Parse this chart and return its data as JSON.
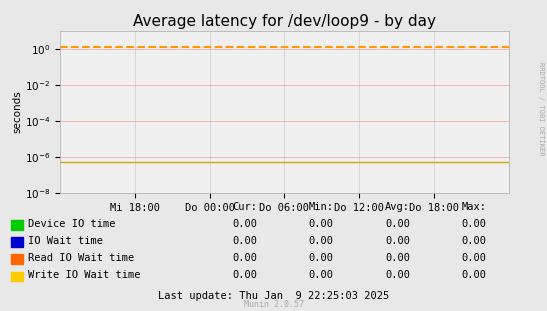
{
  "title": "Average latency for /dev/loop9 - by day",
  "ylabel": "seconds",
  "background_color": "#e8e8e8",
  "plot_bg_color": "#f0f0f0",
  "grid_color_major": "#ff9999",
  "grid_color_minor": "#cccccc",
  "ylim_min": 1e-08,
  "ylim_max": 10,
  "xlim_min": 0,
  "xlim_max": 1,
  "x_ticks": [
    0.1667,
    0.3333,
    0.5,
    0.6667,
    0.8333
  ],
  "x_tick_labels": [
    "Mi 18:00",
    "Do 00:00",
    "Do 06:00",
    "Do 12:00",
    "Do 18:00"
  ],
  "dashed_line_y": 1.3,
  "dashed_line_color": "#ff9900",
  "bottom_line_color": "#ccaa00",
  "legend_items": [
    {
      "label": "Device IO time",
      "color": "#00cc00"
    },
    {
      "label": "IO Wait time",
      "color": "#0000cc"
    },
    {
      "label": "Read IO Wait time",
      "color": "#ff6600"
    },
    {
      "label": "Write IO Wait time",
      "color": "#ffcc00"
    }
  ],
  "table_headers": [
    "Cur:",
    "Min:",
    "Avg:",
    "Max:"
  ],
  "table_rows": [
    [
      "0.00",
      "0.00",
      "0.00",
      "0.00"
    ],
    [
      "0.00",
      "0.00",
      "0.00",
      "0.00"
    ],
    [
      "0.00",
      "0.00",
      "0.00",
      "0.00"
    ],
    [
      "0.00",
      "0.00",
      "0.00",
      "0.00"
    ]
  ],
  "last_update": "Last update: Thu Jan  9 22:25:03 2025",
  "watermark": "Munin 2.0.57",
  "rrdtool_text": "RRDTOOL / TOBI OETIKER",
  "title_fontsize": 11,
  "axis_fontsize": 7.5,
  "legend_fontsize": 7.5,
  "table_fontsize": 7.5
}
